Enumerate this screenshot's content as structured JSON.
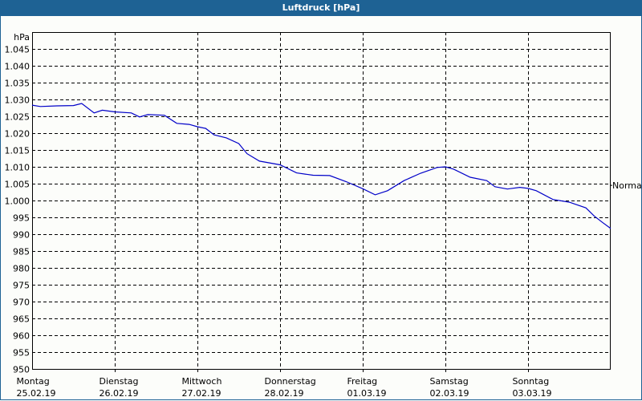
{
  "window": {
    "title": "Luftdruck [hPa]"
  },
  "colors": {
    "titlebar": "#1e6294",
    "background": "#fcfdfa",
    "line": "#0000c8",
    "grid": "#000000"
  },
  "chart_data": {
    "type": "line",
    "title": "Luftdruck [hPa]",
    "ylabel": "hPa",
    "xlabel": "",
    "ylim": [
      950,
      1045
    ],
    "yticks": [
      "1.045",
      "1.040",
      "1.035",
      "1.030",
      "1.025",
      "1.020",
      "1.015",
      "1.010",
      "1.005",
      "1.000",
      "995",
      "990",
      "985",
      "980",
      "975",
      "970",
      "965",
      "960",
      "955",
      "950"
    ],
    "xticks": [
      {
        "day": "Montag",
        "date": "25.02.19"
      },
      {
        "day": "Dienstag",
        "date": "26.02.19"
      },
      {
        "day": "Mittwoch",
        "date": "27.02.19"
      },
      {
        "day": "Donnerstag",
        "date": "28.02.19"
      },
      {
        "day": "Freitag",
        "date": "01.03.19"
      },
      {
        "day": "Samstag",
        "date": "02.03.19"
      },
      {
        "day": "Sonntag",
        "date": "03.03.19"
      }
    ],
    "reference_line": {
      "label": "Normal",
      "value": 1004.5
    },
    "grid": true,
    "series": [
      {
        "name": "Luftdruck",
        "x_days": [
          0.0,
          0.1,
          0.3,
          0.5,
          0.6,
          0.75,
          0.85,
          1.0,
          1.2,
          1.3,
          1.4,
          1.6,
          1.75,
          1.9,
          2.0,
          2.1,
          2.2,
          2.35,
          2.5,
          2.6,
          2.75,
          3.0,
          3.2,
          3.4,
          3.6,
          3.8,
          4.0,
          4.15,
          4.3,
          4.5,
          4.7,
          4.9,
          5.0,
          5.1,
          5.3,
          5.5,
          5.6,
          5.75,
          5.9,
          6.0,
          6.1,
          6.3,
          6.5,
          6.7,
          6.8,
          6.9,
          7.0
        ],
        "values": [
          1028.3,
          1027.9,
          1028.1,
          1028.2,
          1028.8,
          1026.0,
          1026.8,
          1026.3,
          1026.0,
          1024.8,
          1025.5,
          1025.3,
          1022.9,
          1022.6,
          1021.9,
          1021.4,
          1019.5,
          1018.6,
          1016.9,
          1013.9,
          1011.7,
          1010.6,
          1008.2,
          1007.5,
          1007.4,
          1005.6,
          1003.5,
          1001.7,
          1002.9,
          1005.9,
          1008.1,
          1009.8,
          1010.0,
          1009.3,
          1006.9,
          1005.9,
          1004.1,
          1003.4,
          1003.9,
          1003.6,
          1002.9,
          1000.3,
          999.5,
          997.8,
          995.4,
          993.5,
          991.7
        ]
      }
    ]
  }
}
